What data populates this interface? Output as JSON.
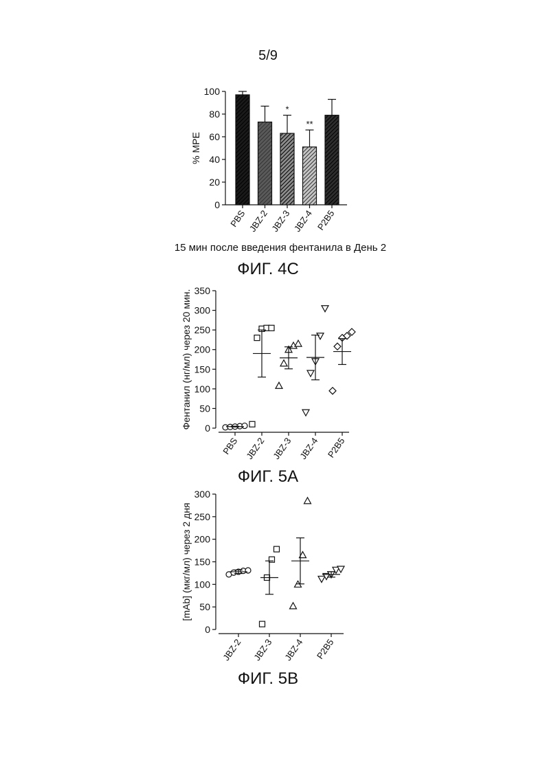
{
  "page": {
    "number": "5/9",
    "figures": [
      "ФИГ. 4C",
      "ФИГ. 5A",
      "ФИГ. 5B"
    ]
  },
  "chart_data": [
    {
      "type": "bar",
      "caption": "ФИГ. 4C",
      "ylabel": "% MPE",
      "xlabel": "15 мин после введения фентанила в День 2",
      "ylim": [
        0,
        100
      ],
      "yticks": [
        0,
        20,
        40,
        60,
        80,
        100
      ],
      "categories": [
        "PBS",
        "JBZ-2",
        "JBZ-3",
        "JBZ-4",
        "P2B5"
      ],
      "values": [
        97,
        73,
        63,
        51,
        79
      ],
      "errors": [
        3,
        14,
        16,
        15,
        14
      ],
      "significance": [
        "",
        "",
        "*",
        "**",
        ""
      ],
      "fills": [
        "#1a1a1a",
        "#5a5a5a",
        "#8c8c8c",
        "#c4c4c4",
        "#2e2e2e"
      ]
    },
    {
      "type": "scatter",
      "caption": "ФИГ. 5A",
      "ylabel": "Фентанил (нг/мл) через 20 мин.",
      "ylim": [
        0,
        350
      ],
      "yticks": [
        0,
        50,
        100,
        150,
        200,
        250,
        300,
        350
      ],
      "categories": [
        "PBS",
        "JBZ-2",
        "JBZ-3",
        "JBZ-4",
        "P2B5"
      ],
      "markers": [
        "circle",
        "square",
        "triangle-up",
        "triangle-down",
        "diamond"
      ],
      "groups": [
        {
          "points": [
            2,
            3,
            4,
            5,
            6
          ],
          "mean": 4,
          "sem": 1
        },
        {
          "points": [
            10,
            230,
            253,
            255,
            255
          ],
          "mean": 190,
          "sem": 60
        },
        {
          "points": [
            108,
            165,
            200,
            210,
            215
          ],
          "mean": 179,
          "sem": 28
        },
        {
          "points": [
            40,
            140,
            170,
            235,
            305
          ],
          "mean": 180,
          "sem": 57
        },
        {
          "points": [
            95,
            208,
            230,
            235,
            245
          ],
          "mean": 195,
          "sem": 33
        }
      ]
    },
    {
      "type": "scatter",
      "caption": "ФИГ. 5B",
      "ylabel": "[mAb] (мкг/мл) через 2 дня",
      "ylim": [
        0,
        300
      ],
      "yticks": [
        0,
        50,
        100,
        150,
        200,
        250,
        300
      ],
      "categories": [
        "JBZ-2",
        "JBZ-3",
        "JBZ-4",
        "P2B5"
      ],
      "markers": [
        "circle",
        "square",
        "triangle-up",
        "triangle-down"
      ],
      "groups": [
        {
          "points": [
            122,
            126,
            128,
            130,
            131
          ],
          "mean": 128,
          "sem": 4
        },
        {
          "points": [
            12,
            115,
            155,
            178
          ],
          "mean": 115,
          "sem": 37
        },
        {
          "points": [
            52,
            100,
            165,
            285
          ],
          "mean": 152,
          "sem": 51
        },
        {
          "points": [
            112,
            118,
            122,
            132,
            134
          ],
          "mean": 122,
          "sem": 6
        }
      ]
    }
  ]
}
